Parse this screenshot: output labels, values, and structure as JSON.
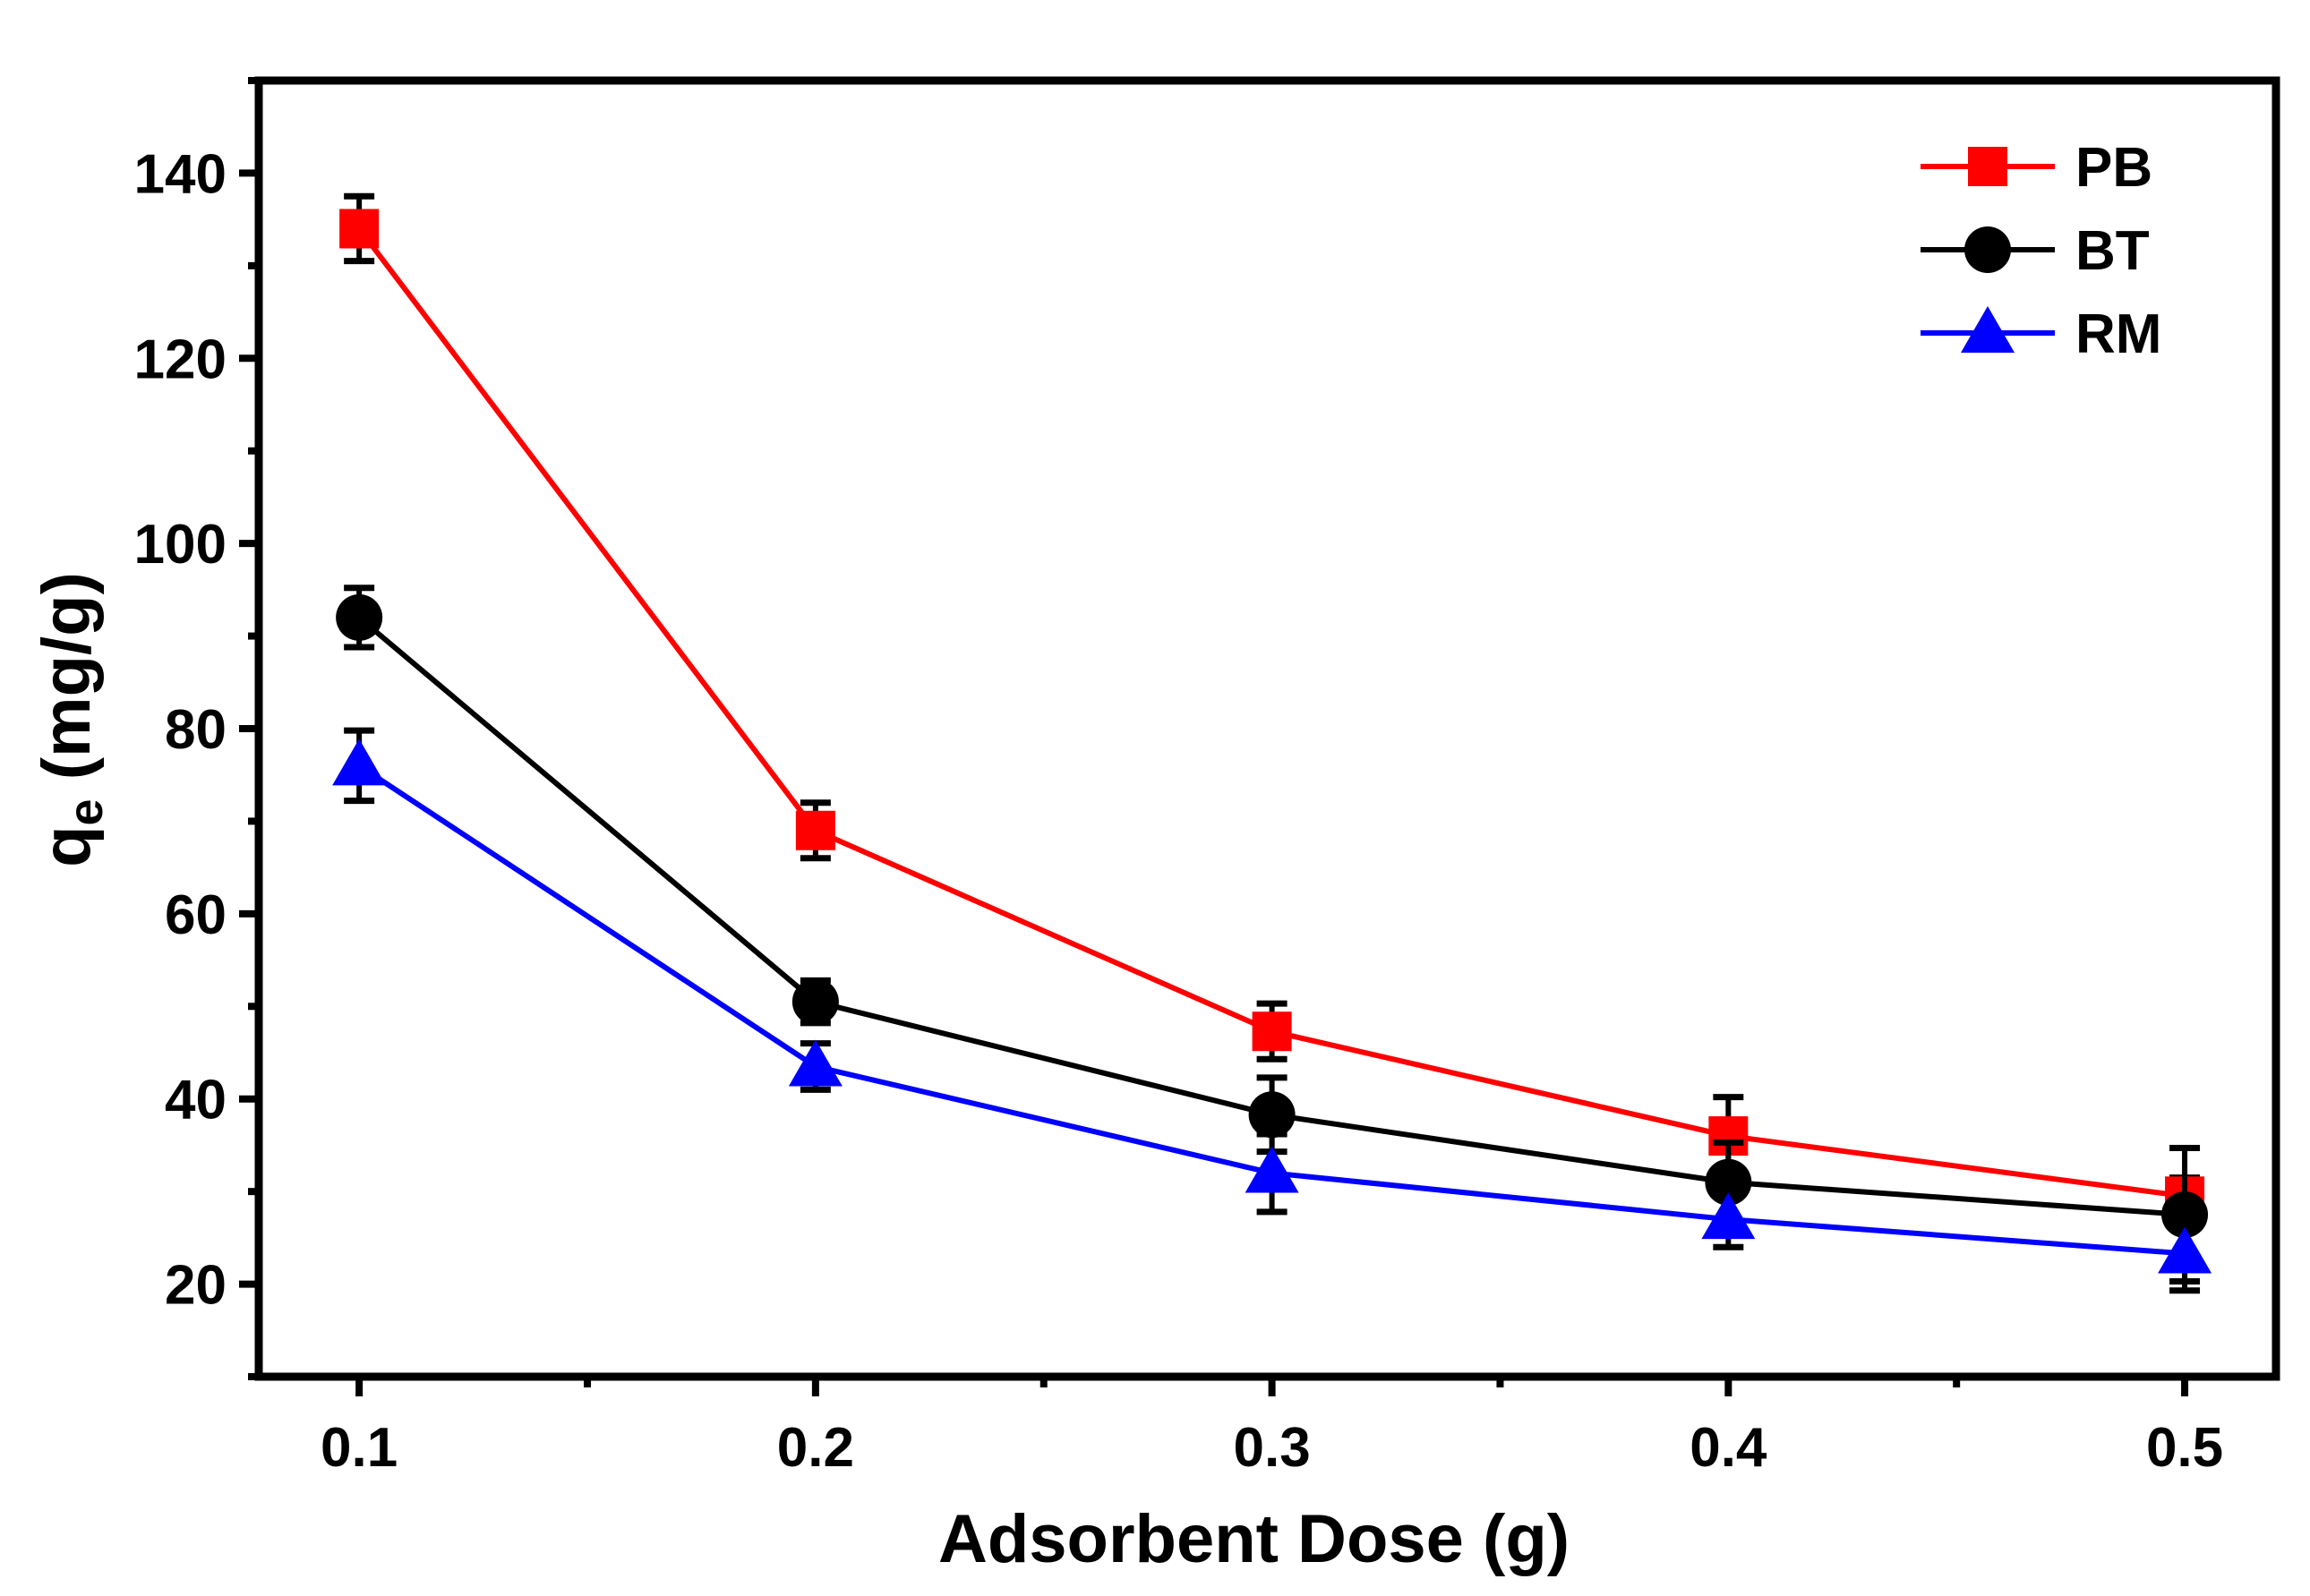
{
  "chart_data": {
    "type": "line",
    "title": "",
    "xlabel": "Adsorbent Dose (g)",
    "ylabel_main": "q",
    "ylabel_sub": "e",
    "ylabel_units": " (mg/g)",
    "x": [
      0.1,
      0.2,
      0.3,
      0.4,
      0.5
    ],
    "x_tick_labels": [
      "0.1",
      "0.2",
      "0.3",
      "0.4",
      "0.5"
    ],
    "xlim": [
      0.078,
      0.52
    ],
    "ylim": [
      10,
      150
    ],
    "y_ticks": [
      20,
      40,
      60,
      80,
      100,
      120,
      140
    ],
    "y_tick_labels": [
      "20",
      "40",
      "60",
      "80",
      "100",
      "120",
      "140"
    ],
    "grid": false,
    "legend_position": "top-right",
    "series": [
      {
        "name": "PB",
        "color": "#ff0000",
        "marker": "square",
        "values": [
          134,
          69,
          47.3,
          36,
          29.5
        ],
        "errors": [
          3.5,
          3,
          3,
          4.2,
          2
        ]
      },
      {
        "name": "BT",
        "color": "#000000",
        "marker": "circle",
        "values": [
          92,
          50.5,
          38.3,
          31,
          27.5
        ],
        "errors": [
          3.2,
          2.3,
          4,
          4.3,
          7.2
        ]
      },
      {
        "name": "RM",
        "color": "#0000ff",
        "marker": "triangle",
        "values": [
          76,
          43.5,
          32,
          27,
          23.3
        ],
        "errors": [
          3.8,
          2.5,
          4.2,
          3,
          4
        ]
      }
    ]
  }
}
